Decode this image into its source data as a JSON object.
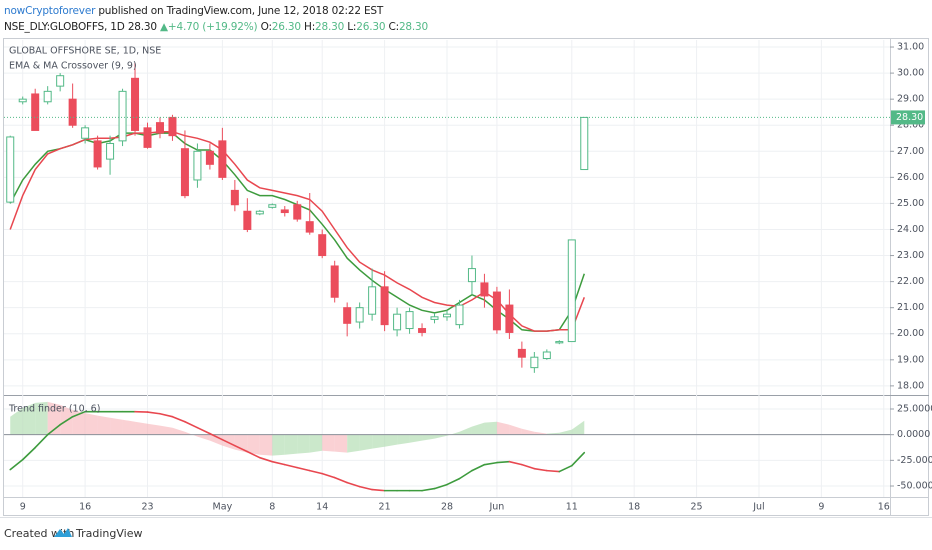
{
  "header": {
    "author": "nowCryptoforever",
    "published": "published on TradingView.com, June 12, 2018 02:22 EST",
    "symbol": "NSE_DLY:GLOBOFFS, 1D",
    "last": "28.30",
    "arrow": "▲",
    "change": "+4.70 (+19.92%)",
    "o_label": "O:",
    "open": "26.30",
    "h_label": "H:",
    "high": "28.30",
    "l_label": "L:",
    "low": "26.30",
    "c_label": "C:",
    "close": "28.30"
  },
  "chart_data": [
    {
      "type": "candlestick",
      "title": "GLOBAL OFFSHORE SE, 1D, NSE",
      "subtitle": "EMA & MA Crossover (9, 9)",
      "categories": [
        null,
        "9",
        null,
        null,
        null,
        null,
        "16",
        null,
        null,
        null,
        null,
        "23",
        null,
        null,
        null,
        null,
        null,
        "May",
        null,
        null,
        null,
        "8",
        null,
        null,
        null,
        "14",
        null,
        null,
        null,
        null,
        "21",
        null,
        null,
        null,
        null,
        "28",
        null,
        null,
        null,
        "Jun",
        null,
        null,
        null,
        null,
        null,
        "11",
        null,
        null,
        null,
        null,
        "18",
        null,
        null,
        null,
        null,
        "25",
        null,
        null,
        null,
        null,
        "Jul",
        null,
        null,
        null,
        null,
        "9",
        null,
        null,
        null,
        null,
        "16"
      ],
      "open": [
        25.05,
        28.9,
        29.2,
        28.9,
        29.5,
        29.0,
        27.5,
        27.4,
        26.7,
        27.4,
        29.8,
        27.9,
        28.1,
        28.3,
        27.1,
        25.9,
        27.0,
        27.4,
        25.5,
        24.7,
        24.6,
        24.85,
        24.75,
        24.95,
        24.3,
        23.8,
        22.6,
        21.0,
        20.45,
        20.75,
        21.8,
        20.15,
        20.2,
        20.2,
        20.55,
        20.65,
        20.35,
        22.0,
        21.95,
        21.6,
        21.1,
        19.4,
        18.7,
        19.05,
        19.65,
        19.7,
        26.3,
        null,
        null,
        null,
        null,
        null,
        null,
        null,
        null,
        null,
        null,
        null,
        null,
        null,
        null,
        null,
        null,
        null,
        null,
        null,
        null,
        null,
        null,
        null,
        null
      ],
      "high": [
        27.6,
        29.1,
        29.4,
        29.5,
        30.0,
        29.6,
        28.0,
        27.6,
        27.6,
        29.4,
        30.4,
        28.1,
        28.3,
        28.4,
        27.8,
        27.3,
        27.3,
        27.9,
        25.9,
        25.2,
        24.75,
        25.0,
        24.9,
        25.1,
        25.4,
        24.0,
        22.8,
        21.2,
        21.2,
        22.5,
        22.4,
        21.0,
        21.0,
        20.4,
        20.8,
        20.9,
        21.3,
        23.0,
        22.3,
        21.8,
        21.7,
        19.7,
        19.3,
        19.4,
        19.75,
        23.6,
        28.3,
        null,
        null,
        null,
        null,
        null,
        null,
        null,
        null,
        null,
        null,
        null,
        null,
        null,
        null,
        null,
        null,
        null,
        null,
        null,
        null,
        null,
        null,
        null,
        null
      ],
      "low": [
        25.0,
        28.8,
        27.8,
        28.8,
        29.3,
        27.9,
        27.3,
        26.3,
        26.1,
        27.2,
        27.6,
        27.1,
        27.5,
        27.4,
        25.2,
        25.6,
        26.3,
        25.9,
        24.7,
        23.9,
        24.55,
        24.8,
        24.5,
        24.3,
        23.8,
        22.9,
        21.2,
        19.9,
        20.2,
        20.5,
        20.1,
        19.9,
        20.0,
        19.9,
        20.4,
        20.5,
        20.2,
        21.5,
        21.0,
        20.0,
        19.8,
        18.7,
        18.5,
        19.0,
        19.6,
        19.7,
        26.3,
        null,
        null,
        null,
        null,
        null,
        null,
        null,
        null,
        null,
        null,
        null,
        null,
        null,
        null,
        null,
        null,
        null,
        null,
        null,
        null,
        null,
        null,
        null,
        null
      ],
      "close": [
        27.55,
        29.0,
        27.8,
        29.3,
        29.9,
        28.0,
        27.9,
        26.4,
        27.3,
        29.3,
        27.8,
        27.15,
        27.7,
        27.6,
        25.3,
        27.0,
        26.5,
        26.0,
        24.95,
        24.0,
        24.7,
        24.95,
        24.65,
        24.4,
        23.9,
        23.0,
        21.4,
        20.4,
        21.0,
        21.8,
        20.35,
        20.75,
        20.85,
        20.05,
        20.65,
        20.75,
        21.1,
        22.5,
        21.45,
        20.15,
        20.05,
        19.1,
        19.1,
        19.3,
        19.7,
        23.6,
        28.3,
        null,
        null,
        null,
        null,
        null,
        null,
        null,
        null,
        null,
        null,
        null,
        null,
        null,
        null,
        null,
        null,
        null,
        null,
        null,
        null,
        null,
        null,
        null,
        null
      ],
      "up_color": "#53b987",
      "down_color": "#eb4d5c",
      "series": [
        {
          "color": "#3d9b3d",
          "values": [
            25.0,
            25.9,
            26.5,
            27.0,
            27.1,
            27.25,
            27.45,
            27.3,
            27.4,
            27.7,
            27.7,
            27.6,
            27.7,
            27.7,
            27.3,
            27.05,
            27.05,
            26.65,
            26.1,
            25.5,
            25.3,
            25.3,
            25.15,
            24.95,
            24.75,
            24.2,
            23.6,
            22.9,
            22.45,
            22.05,
            21.7,
            21.4,
            21.1,
            20.9,
            20.8,
            20.9,
            21.2,
            21.5,
            21.3,
            20.9,
            20.55,
            20.15,
            20.1,
            20.1,
            20.15,
            20.9,
            22.3,
            null,
            null,
            null,
            null,
            null,
            null,
            null,
            null,
            null,
            null,
            null,
            null,
            null,
            null,
            null,
            null,
            null,
            null,
            null,
            null,
            null,
            null,
            null,
            null
          ]
        },
        {
          "color": "#e8474f",
          "values": [
            24.0,
            25.3,
            26.3,
            26.9,
            27.1,
            27.25,
            27.45,
            27.5,
            27.5,
            27.55,
            27.7,
            27.7,
            27.75,
            27.75,
            27.6,
            27.5,
            27.35,
            27.05,
            26.5,
            25.9,
            25.6,
            25.5,
            25.4,
            25.3,
            25.15,
            24.7,
            24.0,
            23.3,
            22.75,
            22.45,
            22.25,
            21.95,
            21.7,
            21.4,
            21.2,
            21.1,
            21.05,
            21.3,
            21.6,
            21.3,
            20.75,
            20.3,
            20.1,
            20.1,
            20.15,
            20.15,
            21.4,
            null,
            null,
            null,
            null,
            null,
            null,
            null,
            null,
            null,
            null,
            null,
            null,
            null,
            null,
            null,
            null,
            null,
            null,
            null,
            null,
            null,
            null,
            null,
            null
          ]
        }
      ],
      "last_price": {
        "value": 28.3,
        "label": "28.30",
        "color": "#53b987"
      },
      "ylim": [
        17.65,
        31.27
      ],
      "yticks": [
        {
          "value": 18,
          "label": "18.00"
        },
        {
          "value": 19,
          "label": "19.00"
        },
        {
          "value": 20,
          "label": "20.00"
        },
        {
          "value": 21,
          "label": "21.00"
        },
        {
          "value": 22,
          "label": "22.00"
        },
        {
          "value": 23,
          "label": "23.00"
        },
        {
          "value": 24,
          "label": "24.00"
        },
        {
          "value": 25,
          "label": "25.00"
        },
        {
          "value": 26,
          "label": "26.00"
        },
        {
          "value": 27,
          "label": "27.00"
        },
        {
          "value": 28,
          "label": "28.00"
        },
        {
          "value": 29,
          "label": "29.00"
        },
        {
          "value": 30,
          "label": "30.00"
        },
        {
          "value": 31,
          "label": "31.00"
        }
      ],
      "grid": true
    },
    {
      "type": "line",
      "title": "Trend finder (10, 6)",
      "area": {
        "up_color": "#a9d8a9",
        "down_color": "#f6b3b8",
        "values": [
          17.5,
          26,
          31,
          32,
          29,
          24,
          21,
          18.5,
          16.5,
          14.6,
          12.6,
          10.7,
          8.8,
          6.8,
          2.9,
          -1.9,
          -5.8,
          -10.7,
          -14.6,
          -17.5,
          -19.5,
          -20.4,
          -19.5,
          -18.5,
          -17.5,
          -15.6,
          -16.5,
          -17.5,
          -15.6,
          -13.6,
          -11.7,
          -9.7,
          -7.8,
          -5.8,
          -3.9,
          -1,
          2.9,
          7.8,
          11.7,
          12.6,
          9.7,
          5.8,
          2.9,
          1,
          1.9,
          4.9,
          13.6,
          null,
          null,
          null,
          null,
          null,
          null,
          null,
          null,
          null,
          null,
          null,
          null,
          null,
          null,
          null,
          null,
          null,
          null,
          null,
          null,
          null,
          null,
          null,
          null
        ]
      },
      "line": {
        "up_color": "#3d9b3d",
        "down_color": "#e8474f",
        "values": [
          -34,
          -24.3,
          -12.6,
          0,
          9.7,
          17.5,
          22.4,
          22.4,
          22.4,
          22.4,
          22.4,
          22.0,
          20.4,
          17.5,
          12.6,
          6.8,
          1,
          -4.9,
          -10.7,
          -16.5,
          -22.4,
          -26.3,
          -29.2,
          -32.1,
          -35,
          -37.9,
          -41.8,
          -46.7,
          -50.6,
          -53.5,
          -54.5,
          -54.5,
          -54.5,
          -54.5,
          -52.5,
          -48.6,
          -42.8,
          -35,
          -29.2,
          -27.2,
          -26.3,
          -29.2,
          -33.1,
          -35,
          -35.9,
          -30.2,
          -17.5,
          null,
          null,
          null,
          null,
          null,
          null,
          null,
          null,
          null,
          null,
          null,
          null,
          null,
          null,
          null,
          null,
          null,
          null,
          null,
          null,
          null,
          null,
          null,
          null
        ]
      },
      "ylim": [
        -60.7,
        36.7
      ],
      "yticks": [
        {
          "value": 25,
          "label": "25.0000"
        },
        {
          "value": 0,
          "label": "0.0000"
        },
        {
          "value": -25,
          "label": "-25.0000"
        },
        {
          "value": -50,
          "label": "-50.0000"
        }
      ],
      "grid": true
    }
  ],
  "footer": {
    "created": "Created with",
    "brand": "TradingView"
  }
}
